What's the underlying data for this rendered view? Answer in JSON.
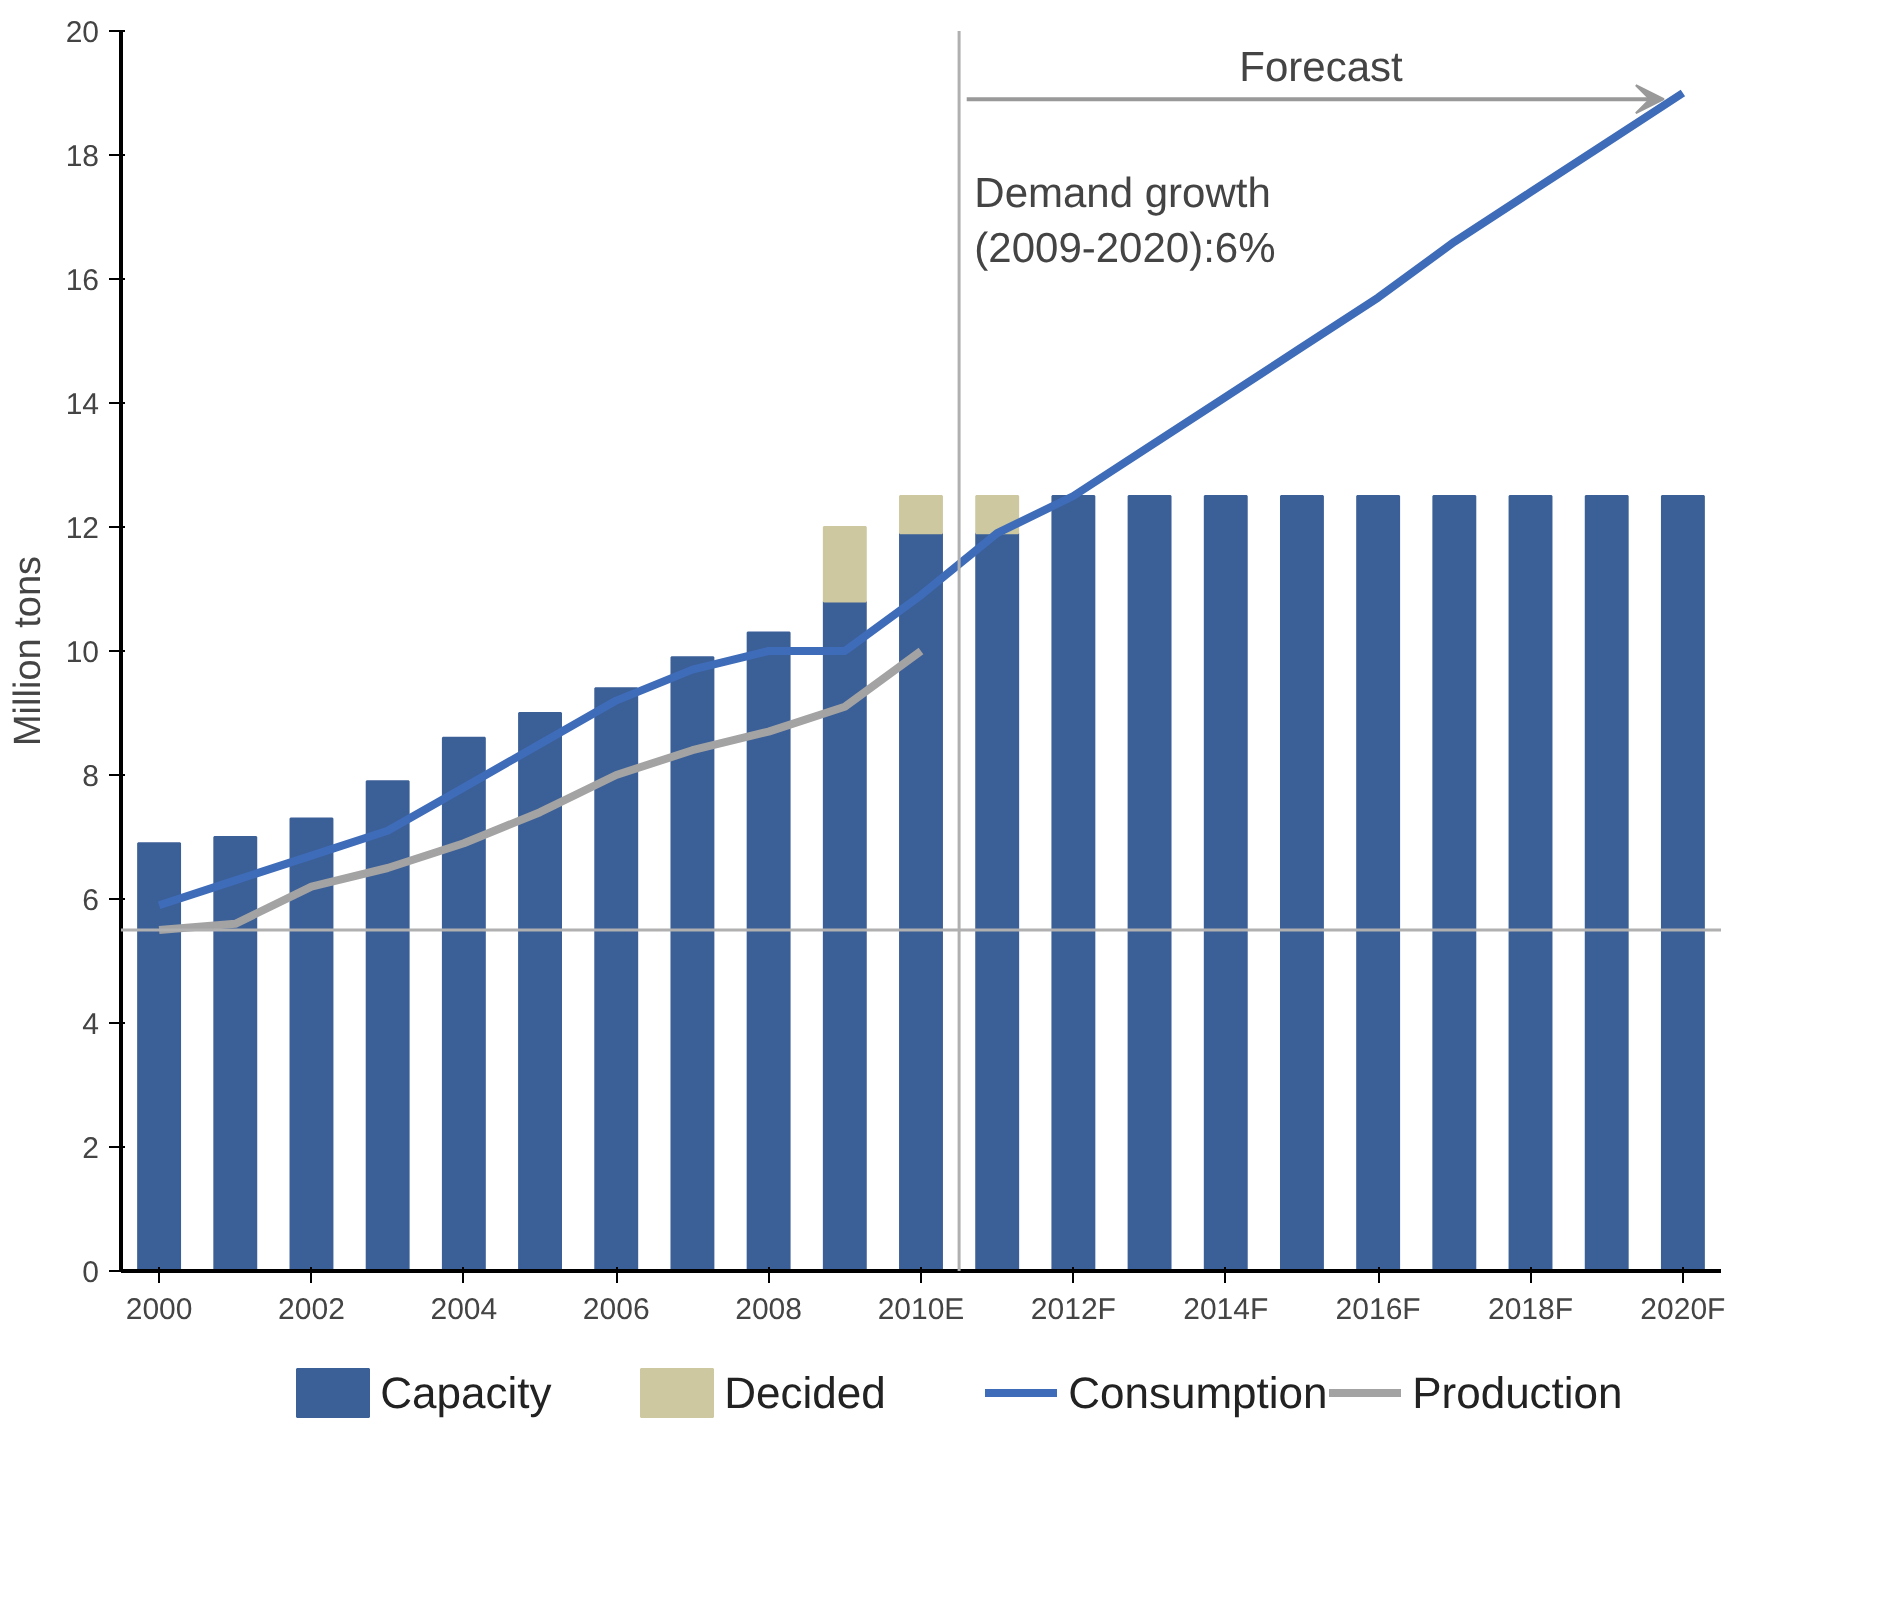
{
  "chart_data": {
    "type": "bar",
    "stacked": true,
    "ylabel": "Million tons",
    "x": [
      2000,
      2001,
      2002,
      2003,
      2004,
      2005,
      2006,
      2007,
      2008,
      2009,
      2010,
      2011,
      2012,
      2013,
      2014,
      2015,
      2016,
      2017,
      2018,
      2019,
      2020
    ],
    "xlim": [
      1999.5,
      2020.5
    ],
    "xticks": [
      2000,
      2002,
      2004,
      2006,
      2008,
      {
        "value": 2010,
        "label": "2010E"
      },
      {
        "value": 2012,
        "label": "2012F"
      },
      {
        "value": 2014,
        "label": "2014F"
      },
      {
        "value": 2016,
        "label": "2016F"
      },
      {
        "value": 2018,
        "label": "2018F"
      },
      {
        "value": 2020,
        "label": "2020F"
      }
    ],
    "ylim": [
      0,
      20
    ],
    "yticks": [
      0,
      2,
      4,
      6,
      8,
      10,
      12,
      14,
      16,
      18,
      20
    ],
    "series": [
      {
        "name": "Capacity",
        "color": "#3b5f97",
        "values": [
          6.9,
          7.0,
          7.3,
          7.9,
          8.6,
          9.0,
          9.4,
          9.9,
          10.3,
          10.8,
          11.9,
          11.9,
          12.5,
          12.5,
          12.5,
          12.5,
          12.5,
          12.5,
          12.5,
          12.5,
          12.5
        ]
      },
      {
        "name": "Decided",
        "color": "#cdc8a0",
        "values": [
          null,
          null,
          null,
          null,
          null,
          null,
          null,
          null,
          null,
          1.2,
          0.6,
          0.6,
          null,
          null,
          null,
          null,
          null,
          null,
          null,
          null,
          null
        ]
      },
      {
        "name": "Consumption",
        "type": "line",
        "color": "#3f6cb8",
        "values": [
          5.9,
          6.3,
          6.7,
          7.1,
          7.8,
          8.5,
          9.2,
          9.7,
          10.0,
          10.0,
          10.9,
          11.9,
          12.5,
          13.3,
          14.1,
          14.9,
          15.7,
          16.6,
          17.4,
          18.2,
          19.0
        ]
      },
      {
        "name": "Production",
        "type": "line",
        "color": "#a3a3a3",
        "values": [
          5.5,
          5.6,
          6.2,
          6.5,
          6.9,
          7.4,
          8.0,
          8.4,
          8.7,
          9.1,
          10.0,
          null,
          null,
          null,
          null,
          null,
          null,
          null,
          null,
          null,
          null
        ]
      }
    ],
    "ref_lines": [
      {
        "axis": "x",
        "value": 2010.5,
        "color": "#b0b0b0"
      },
      {
        "axis": "y",
        "value": 5.5,
        "color": "#b0b0b0"
      }
    ],
    "annotations": [
      "Forecast",
      "Demand growth\n(2009-2020):6%"
    ],
    "legend": "bottom",
    "grid": false
  }
}
